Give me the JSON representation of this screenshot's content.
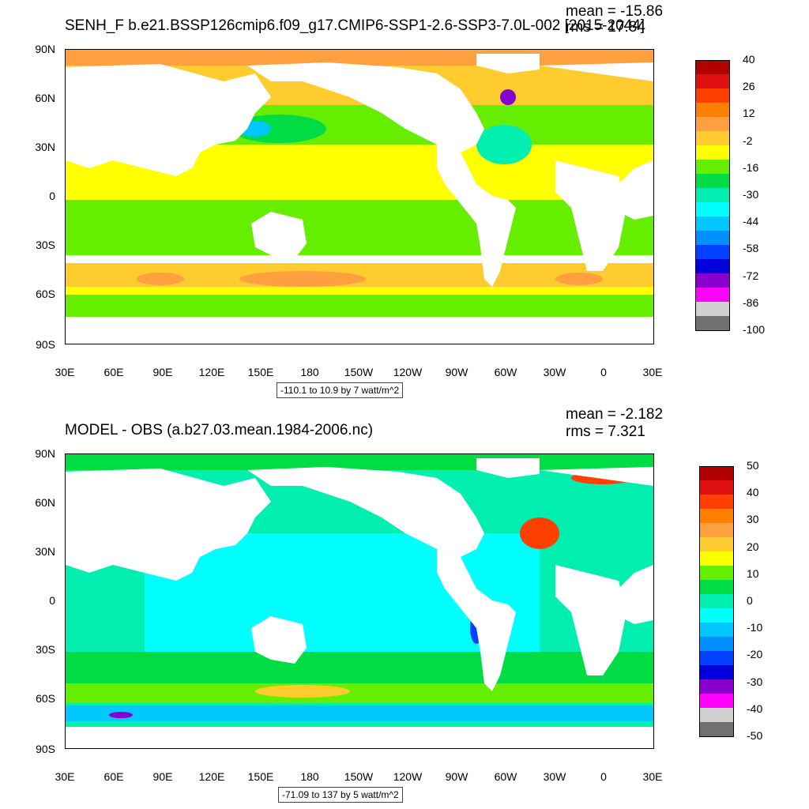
{
  "panel1": {
    "title": "SENH_F b.e21.BSSP126cmip6.f09_g17.CMIP6-SSP1-2.6-SSP3-7.0L-002 [2015-2044]",
    "mean": "mean = -15.86",
    "rms": "rms = 17.84",
    "range": "-110.1 to 10.9 by 7 watt/m^2",
    "colorbar_labels": [
      "40",
      "26",
      "12",
      "-2",
      "-16",
      "-30",
      "-44",
      "-58",
      "-72",
      "-86",
      "-100"
    ],
    "colorbar_colors": [
      "#b00000",
      "#e01010",
      "#ff4000",
      "#ff8000",
      "#ffa040",
      "#ffcc30",
      "#ffff00",
      "#66ee00",
      "#00dd44",
      "#00eeb0",
      "#00ffff",
      "#00c8ff",
      "#0090ff",
      "#0040ff",
      "#0000dd",
      "#8800cc",
      "#ff00ff",
      "#d0d0d0",
      "#707070"
    ]
  },
  "panel2": {
    "title": "MODEL - OBS (a.b27.03.mean.1984-2006.nc)",
    "mean": "mean = -2.182",
    "rms": "rms = 7.321",
    "range": "-71.09 to 137 by 5 watt/m^2",
    "colorbar_labels": [
      "50",
      "40",
      "30",
      "20",
      "10",
      "0",
      "-10",
      "-20",
      "-30",
      "-40",
      "-50"
    ],
    "colorbar_colors": [
      "#b00000",
      "#e01010",
      "#ff4000",
      "#ff8000",
      "#ffa040",
      "#ffcc30",
      "#ffff00",
      "#66ee00",
      "#00dd44",
      "#00eeb0",
      "#00ffff",
      "#00c8ff",
      "#0090ff",
      "#0040ff",
      "#0000dd",
      "#8800cc",
      "#ff00ff",
      "#d0d0d0",
      "#707070"
    ]
  },
  "lat_labels": [
    "90N",
    "60N",
    "30N",
    "0",
    "30S",
    "60S",
    "90S"
  ],
  "lon_labels": [
    "30E",
    "60E",
    "90E",
    "120E",
    "150E",
    "180",
    "150W",
    "120W",
    "90W",
    "60W",
    "30W",
    "0",
    "30E"
  ]
}
